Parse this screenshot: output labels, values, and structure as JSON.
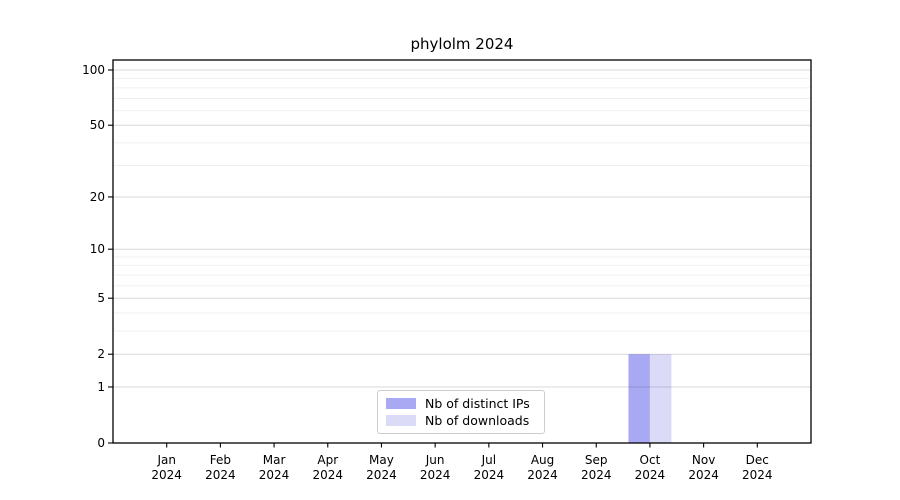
{
  "chart_data": {
    "type": "bar",
    "title": "phylolm 2024",
    "categories": [
      "Jan",
      "Feb",
      "Mar",
      "Apr",
      "May",
      "Jun",
      "Jul",
      "Aug",
      "Sep",
      "Oct",
      "Nov",
      "Dec"
    ],
    "category_year": "2024",
    "series": [
      {
        "name": "Nb of distinct IPs",
        "color": "#a9a9f3",
        "values": [
          0,
          0,
          0,
          0,
          0,
          0,
          0,
          0,
          0,
          2,
          0,
          0
        ]
      },
      {
        "name": "Nb of downloads",
        "color": "#dbdbf8",
        "values": [
          0,
          0,
          0,
          0,
          0,
          0,
          0,
          0,
          0,
          2,
          0,
          0
        ]
      }
    ],
    "y_scale": "log1p",
    "y_ticks": [
      0,
      1,
      2,
      5,
      10,
      20,
      50,
      100
    ],
    "y_minor_ticks": [
      3,
      4,
      6,
      7,
      8,
      9,
      30,
      40,
      60,
      70,
      80,
      90
    ],
    "ylim": [
      0,
      113
    ],
    "grid": true,
    "grid_over_bars": true,
    "legend_position": "lower center",
    "colors": {
      "axis": "#000000",
      "grid_major": "#dcdcdc",
      "grid_minor": "#f0f0f0",
      "background": "#ffffff",
      "legend_border": "#cccccc"
    }
  }
}
